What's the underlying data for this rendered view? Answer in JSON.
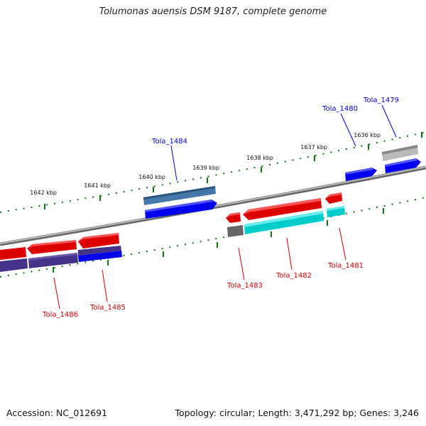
{
  "title": "Tolumonas auensis DSM 9187, complete genome",
  "footer": {
    "accession_label": "Accession:",
    "accession": "NC_012691",
    "topology_label": "Topology:",
    "topology": "circular;",
    "length_label": "Length:",
    "length": "3,471,292 bp;",
    "genes_label": "Genes:",
    "genes": "3,246"
  },
  "scale": {
    "ticks": [
      "1636 kbp",
      "1637 kbp",
      "1638 kbp",
      "1639 kbp",
      "1640 kbp",
      "1641 kbp",
      "1642 kbp"
    ]
  },
  "genes": [
    {
      "name": "Tola_1479",
      "strand": "+",
      "color": "#0000ee"
    },
    {
      "name": "Tola_1480",
      "strand": "+",
      "color": "#0000ee"
    },
    {
      "name": "Tola_1481",
      "strand": "-",
      "color": "#dd0000"
    },
    {
      "name": "Tola_1482",
      "strand": "-",
      "color": "#dd0000"
    },
    {
      "name": "Tola_1483",
      "strand": "-",
      "color": "#dd0000"
    },
    {
      "name": "Tola_1484",
      "strand": "+",
      "color": "#0000ee"
    },
    {
      "name": "Tola_1485",
      "strand": "-",
      "color": "#dd0000"
    },
    {
      "name": "Tola_1486",
      "strand": "-",
      "color": "#dd0000"
    }
  ],
  "feature_colors": {
    "plus_gene": "#0000ee",
    "minus_gene": "#dd0000",
    "minus_cds_cyan": "#00cccc",
    "plus_cds_steel": "#4477aa",
    "minus_cds_purple": "#443388",
    "grey_feature": "#666666",
    "light_grey_feature": "#bbbbbb",
    "tick_green": "#117711",
    "backbone": "#888888"
  }
}
